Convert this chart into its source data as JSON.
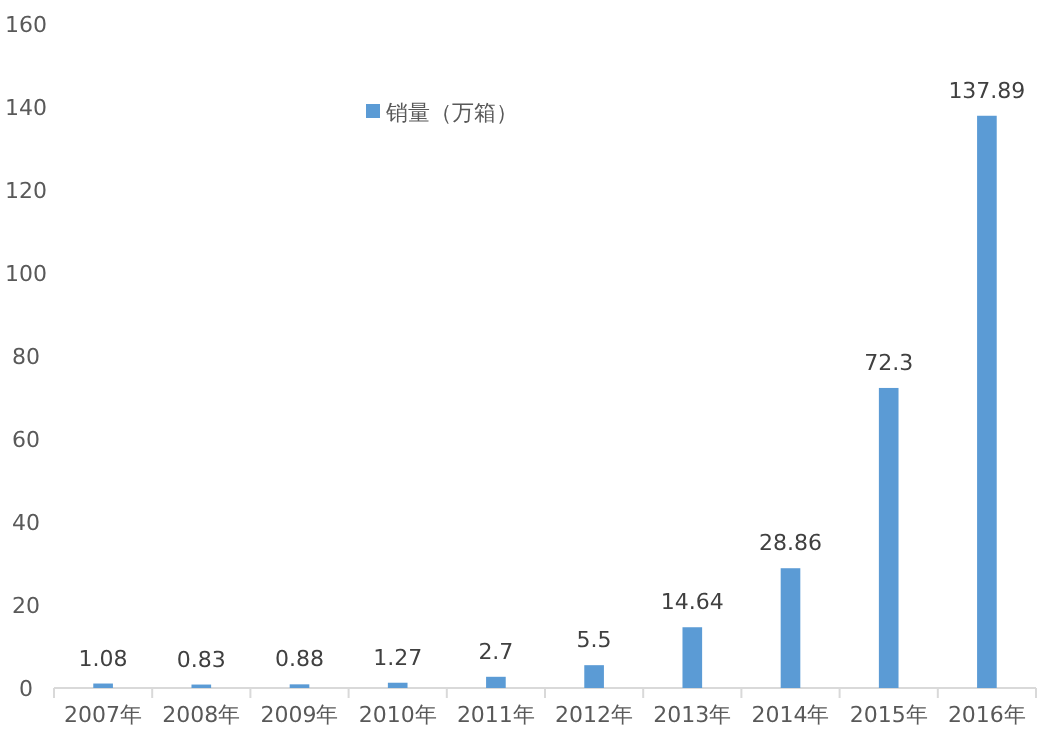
{
  "chart_data": {
    "type": "bar",
    "categories": [
      "2007年",
      "2008年",
      "2009年",
      "2010年",
      "2011年",
      "2012年",
      "2013年",
      "2014年",
      "2015年",
      "2016年"
    ],
    "series": [
      {
        "name": "销量（万箱）",
        "color": "#5b9bd5",
        "values": [
          1.08,
          0.83,
          0.88,
          1.27,
          2.7,
          5.5,
          14.64,
          28.86,
          72.3,
          137.89
        ]
      }
    ],
    "ylim": [
      0,
      160
    ],
    "yticks": [
      0,
      20,
      40,
      60,
      80,
      100,
      120,
      140,
      160
    ],
    "grid": false,
    "legend": "top left",
    "data_labels": true
  }
}
